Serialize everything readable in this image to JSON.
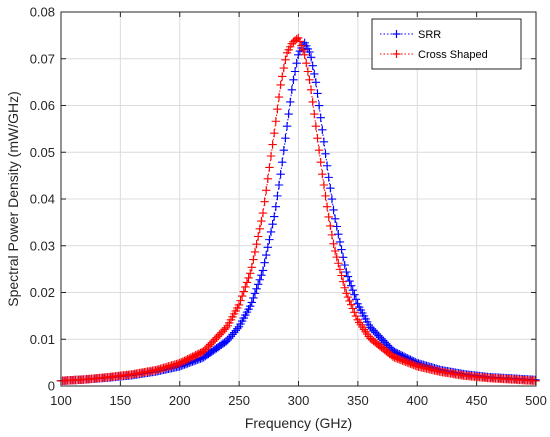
{
  "chart_data": {
    "type": "line",
    "title": "",
    "xlabel": "Frequency (GHz)",
    "ylabel": "Spectral Power Density (mW/GHz)",
    "xlim": [
      100,
      500
    ],
    "ylim": [
      0,
      0.08
    ],
    "xticks": [
      100,
      150,
      200,
      250,
      300,
      350,
      400,
      450,
      500
    ],
    "yticks": [
      0,
      0.01,
      0.02,
      0.03,
      0.04,
      0.05,
      0.06,
      0.07,
      0.08
    ],
    "xtick_labels": [
      "100",
      "150",
      "200",
      "250",
      "300",
      "350",
      "400",
      "450",
      "500"
    ],
    "ytick_labels": [
      "0",
      "0.01",
      "0.02",
      "0.03",
      "0.04",
      "0.05",
      "0.06",
      "0.07",
      "0.08"
    ],
    "grid": true,
    "legend_position": "top-right",
    "series": [
      {
        "name": "SRR",
        "color": "#0000ff",
        "line_style": "dotted",
        "marker": "plus",
        "x": [
          100,
          120,
          140,
          160,
          180,
          200,
          220,
          240,
          250,
          260,
          270,
          280,
          285,
          290,
          295,
          300,
          305,
          310,
          315,
          320,
          325,
          330,
          340,
          350,
          360,
          380,
          400,
          420,
          440,
          460,
          480,
          500
        ],
        "y": [
          0.0011,
          0.0014,
          0.0018,
          0.0023,
          0.0031,
          0.0042,
          0.0061,
          0.0097,
          0.0127,
          0.0174,
          0.0246,
          0.0368,
          0.0454,
          0.0549,
          0.0645,
          0.0711,
          0.0735,
          0.0711,
          0.0645,
          0.0549,
          0.0454,
          0.0368,
          0.0246,
          0.0174,
          0.0127,
          0.0074,
          0.0049,
          0.0034,
          0.0025,
          0.0019,
          0.0016,
          0.0013
        ]
      },
      {
        "name": "Cross Shaped",
        "color": "#ff0000",
        "line_style": "dotted",
        "marker": "plus",
        "x": [
          100,
          120,
          140,
          160,
          180,
          200,
          220,
          240,
          250,
          260,
          270,
          280,
          285,
          290,
          295,
          300,
          305,
          310,
          315,
          320,
          325,
          330,
          340,
          350,
          360,
          380,
          400,
          420,
          440,
          460,
          480,
          500
        ],
        "y": [
          0.0011,
          0.0014,
          0.0019,
          0.0025,
          0.0034,
          0.0049,
          0.0074,
          0.0127,
          0.0174,
          0.0246,
          0.0368,
          0.0549,
          0.0645,
          0.0711,
          0.0735,
          0.0745,
          0.0711,
          0.0645,
          0.0549,
          0.0454,
          0.0368,
          0.0297,
          0.02,
          0.014,
          0.0103,
          0.0062,
          0.0042,
          0.003,
          0.0022,
          0.0017,
          0.0014,
          0.0011
        ]
      }
    ]
  }
}
